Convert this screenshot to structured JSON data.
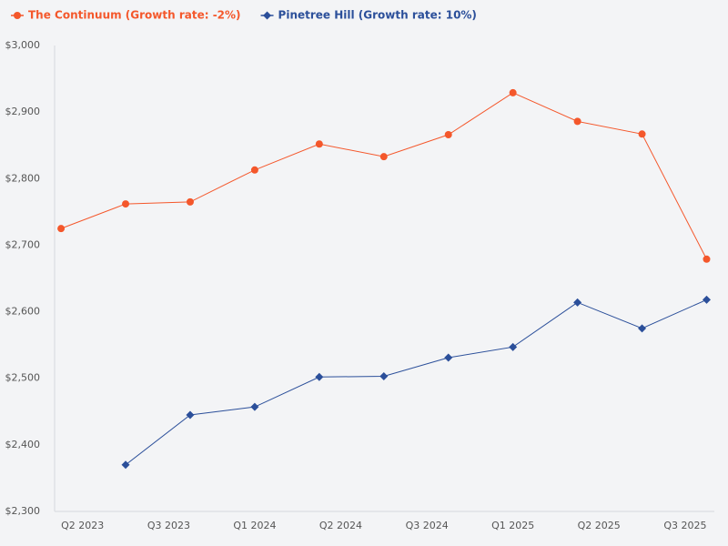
{
  "chart_data": {
    "type": "line",
    "x": [
      2023.25,
      2023.5,
      2023.75,
      2024.0,
      2024.25,
      2024.5,
      2024.75,
      2025.0,
      2025.25,
      2025.5,
      2025.75
    ],
    "series": [
      {
        "name": "The Continuum (Growth rate: -2%)",
        "color": "#f4572b",
        "marker": "circle",
        "values": [
          2725,
          2762,
          2765,
          2813,
          2852,
          2833,
          2866,
          2929,
          2886,
          2867,
          2679
        ]
      },
      {
        "name": "Pinetree Hill (Growth rate: 10%)",
        "color": "#2b4f9a",
        "marker": "diamond",
        "values": [
          null,
          2370,
          2445,
          2457,
          2502,
          2503,
          2531,
          2547,
          2614,
          2575,
          2618
        ]
      }
    ],
    "xlim": [
      2023.225,
      2025.78
    ],
    "xticks": [
      {
        "value": 2023.333,
        "label": "Q2 2023"
      },
      {
        "value": 2023.667,
        "label": "Q3 2023"
      },
      {
        "value": 2024.0,
        "label": "Q1 2024"
      },
      {
        "value": 2024.333,
        "label": "Q2 2024"
      },
      {
        "value": 2024.667,
        "label": "Q3 2024"
      },
      {
        "value": 2025.0,
        "label": "Q1 2025"
      },
      {
        "value": 2025.333,
        "label": "Q2 2025"
      },
      {
        "value": 2025.667,
        "label": "Q3 2025"
      }
    ],
    "ylim": [
      2300,
      3000
    ],
    "yticks": [
      {
        "value": 2300,
        "label": "$2,300"
      },
      {
        "value": 2400,
        "label": "$2,400"
      },
      {
        "value": 2500,
        "label": "$2,500"
      },
      {
        "value": 2600,
        "label": "$2,600"
      },
      {
        "value": 2700,
        "label": "$2,700"
      },
      {
        "value": 2800,
        "label": "$2,800"
      },
      {
        "value": 2900,
        "label": "$2,900"
      },
      {
        "value": 3000,
        "label": "$3,000"
      }
    ],
    "grid": false,
    "legend": "top-left"
  }
}
